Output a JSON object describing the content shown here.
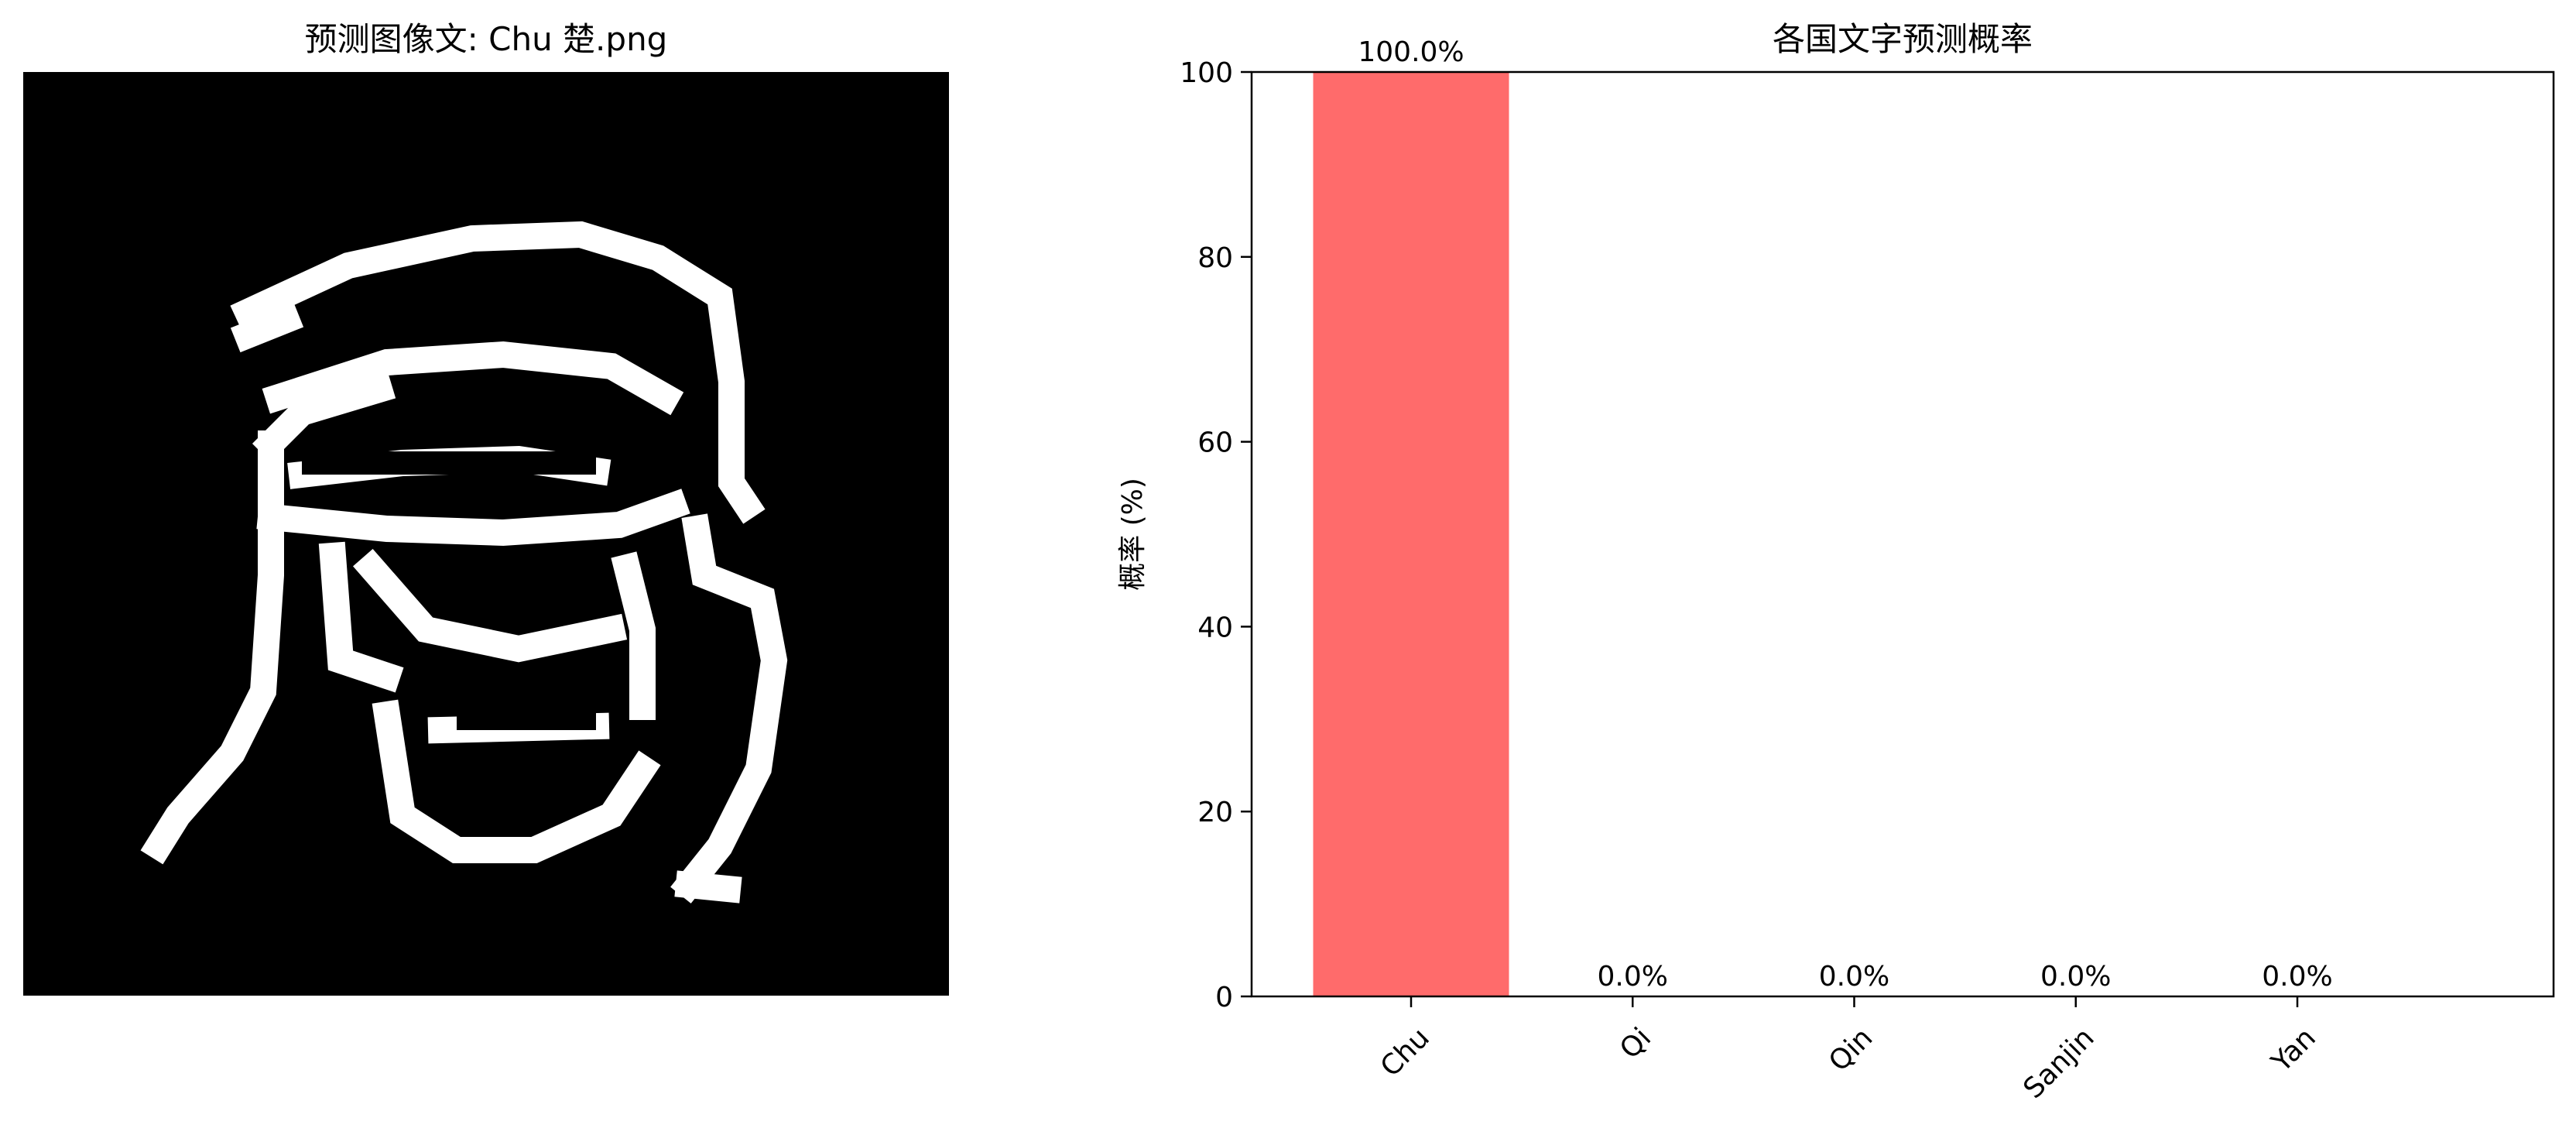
{
  "image_panel": {
    "title": "预测图像文: Chu 楚.png",
    "glyph_icon": "binary-seal-script-character"
  },
  "chart_data": {
    "type": "bar",
    "title": "各国文字预测概率",
    "xlabel": "",
    "ylabel": "概率 (%)",
    "categories": [
      "Chu",
      "Qi",
      "Qin",
      "Sanjin",
      "Yan"
    ],
    "values": [
      100.0,
      0.0,
      0.0,
      0.0,
      0.0
    ],
    "value_labels": [
      "100.0%",
      "0.0%",
      "0.0%",
      "0.0%",
      "0.0%"
    ],
    "ylim": [
      0,
      100
    ],
    "yticks": [
      0,
      20,
      40,
      60,
      80,
      100
    ],
    "bar_color": "#ff6b6b",
    "grid": false,
    "legend": "none"
  }
}
